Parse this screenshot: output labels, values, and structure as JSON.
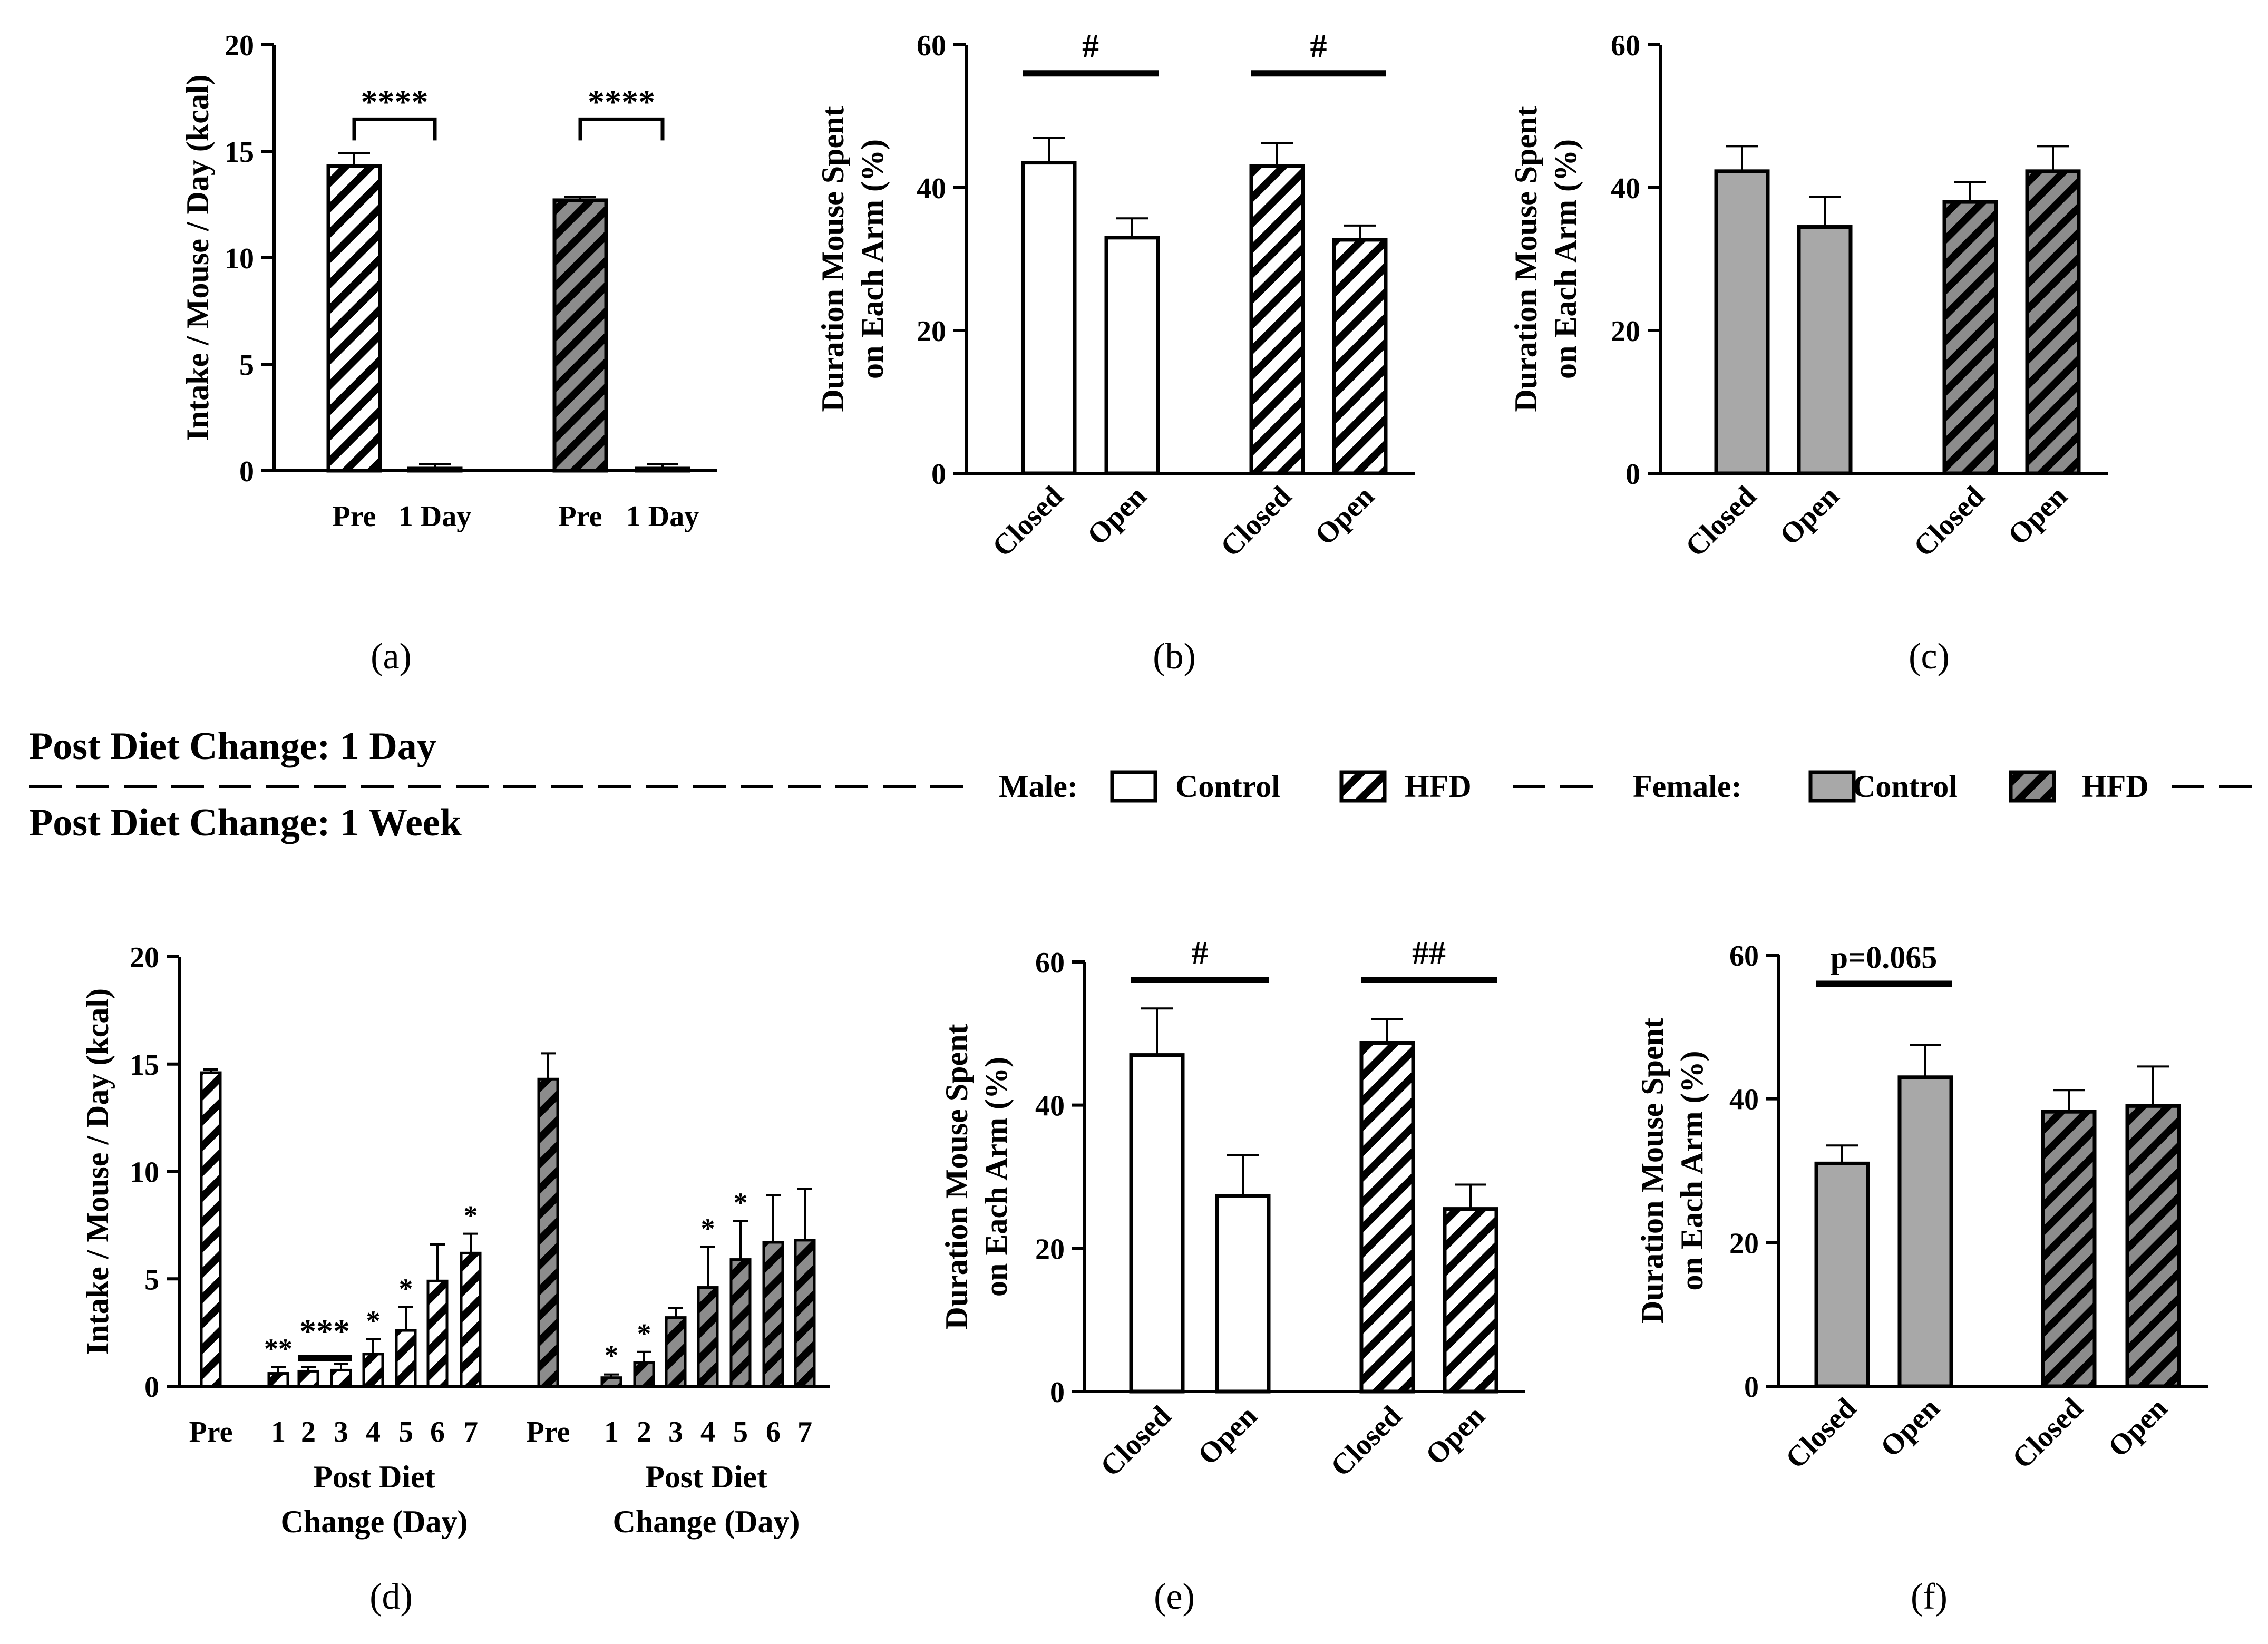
{
  "colors": {
    "male_control": "#ffffff",
    "male_hfd": "#ffffff",
    "female_control": "#a8a8a8",
    "female_hfd": "#8c8c8c",
    "stroke": "#000000"
  },
  "banner": {
    "top": "Post Diet Change: 1 Day",
    "bottom": "Post Diet Change: 1 Week"
  },
  "legend": {
    "male_label": "Male:",
    "female_label": "Female:",
    "items": [
      {
        "group": "male",
        "label": "Control",
        "fill": "male_control",
        "hatch": false
      },
      {
        "group": "male",
        "label": "HFD",
        "fill": "male_hfd",
        "hatch": true
      },
      {
        "group": "female",
        "label": "Control",
        "fill": "female_control",
        "hatch": false
      },
      {
        "group": "female",
        "label": "HFD",
        "fill": "female_hfd",
        "hatch": true
      }
    ]
  },
  "chart_data": [
    {
      "id": "a",
      "panel_label": "(a)",
      "type": "bar",
      "ylabel": "Intake / Mouse / Day (kcal)",
      "ylim": [
        0,
        20
      ],
      "yticks": [
        "0",
        "5",
        "10",
        "15",
        "20"
      ],
      "xlabel": "",
      "rotate_ticks": false,
      "bars": [
        {
          "tick": "Pre",
          "value": 14.3,
          "err": 0.6,
          "fill": "male_hfd",
          "hatch": true
        },
        {
          "tick": "1 Day",
          "value": 0.1,
          "err": 0.2,
          "fill": "male_hfd",
          "hatch": true
        },
        {
          "tick": "Pre",
          "value": 12.7,
          "err": 0.15,
          "fill": "female_hfd",
          "hatch": true
        },
        {
          "tick": "1 Day",
          "value": 0.1,
          "err": 0.2,
          "fill": "female_hfd",
          "hatch": true
        }
      ],
      "annotations": [
        {
          "text": "****",
          "from": 0,
          "to": 1,
          "y": 16.5,
          "style": "bracket"
        },
        {
          "text": "****",
          "from": 2,
          "to": 3,
          "y": 16.5,
          "style": "bracket"
        }
      ]
    },
    {
      "id": "b",
      "panel_label": "(b)",
      "type": "bar",
      "ylabel": [
        "Duration Mouse Spent",
        "on Each Arm (%)"
      ],
      "ylim": [
        0,
        60
      ],
      "yticks": [
        "0",
        "20",
        "40",
        "60"
      ],
      "rotate_ticks": true,
      "bars": [
        {
          "tick": "Closed",
          "value": 43.5,
          "err": 3.5,
          "fill": "male_control",
          "hatch": false
        },
        {
          "tick": "Open",
          "value": 33.0,
          "err": 2.7,
          "fill": "male_control",
          "hatch": false
        },
        {
          "tick": "Closed",
          "value": 43.0,
          "err": 3.2,
          "fill": "male_hfd",
          "hatch": true
        },
        {
          "tick": "Open",
          "value": 32.7,
          "err": 2.0,
          "fill": "male_hfd",
          "hatch": true
        }
      ],
      "annotations": [
        {
          "text": "#",
          "from": 0,
          "to": 1,
          "y": 56,
          "style": "line"
        },
        {
          "text": "#",
          "from": 2,
          "to": 3,
          "y": 56,
          "style": "line"
        }
      ]
    },
    {
      "id": "c",
      "panel_label": "(c)",
      "type": "bar",
      "ylabel": [
        "Duration Mouse Spent",
        "on Each Arm (%)"
      ],
      "ylim": [
        0,
        60
      ],
      "yticks": [
        "0",
        "20",
        "40",
        "60"
      ],
      "rotate_ticks": true,
      "bars": [
        {
          "tick": "Closed",
          "value": 42.3,
          "err": 3.5,
          "fill": "female_control",
          "hatch": false
        },
        {
          "tick": "Open",
          "value": 34.5,
          "err": 4.2,
          "fill": "female_control",
          "hatch": false
        },
        {
          "tick": "Closed",
          "value": 38.0,
          "err": 2.8,
          "fill": "female_hfd",
          "hatch": true
        },
        {
          "tick": "Open",
          "value": 42.3,
          "err": 3.5,
          "fill": "female_hfd",
          "hatch": true
        }
      ],
      "annotations": []
    },
    {
      "id": "d",
      "panel_label": "(d)",
      "type": "bar",
      "ylabel": "Intake / Mouse / Day (kcal)",
      "ylim": [
        0,
        20
      ],
      "yticks": [
        "0",
        "5",
        "10",
        "15",
        "20"
      ],
      "xlabel": [
        "Post Diet",
        "Change (Day)"
      ],
      "rotate_ticks": false,
      "bars": [
        {
          "tick": "Pre",
          "value": 14.6,
          "err": 0.15,
          "fill": "male_hfd",
          "hatch": true
        },
        {
          "tick": "1",
          "value": 0.6,
          "err": 0.3,
          "fill": "male_hfd",
          "hatch": true
        },
        {
          "tick": "2",
          "value": 0.7,
          "err": 0.2,
          "fill": "male_hfd",
          "hatch": true
        },
        {
          "tick": "3",
          "value": 0.75,
          "err": 0.3,
          "fill": "male_hfd",
          "hatch": true
        },
        {
          "tick": "4",
          "value": 1.5,
          "err": 0.7,
          "fill": "male_hfd",
          "hatch": true
        },
        {
          "tick": "5",
          "value": 2.6,
          "err": 1.1,
          "fill": "male_hfd",
          "hatch": true
        },
        {
          "tick": "6",
          "value": 4.9,
          "err": 1.7,
          "fill": "male_hfd",
          "hatch": true
        },
        {
          "tick": "7",
          "value": 6.2,
          "err": 0.9,
          "fill": "male_hfd",
          "hatch": true
        },
        {
          "tick": "Pre",
          "value": 14.3,
          "err": 1.2,
          "fill": "female_hfd",
          "hatch": true
        },
        {
          "tick": "1",
          "value": 0.4,
          "err": 0.15,
          "fill": "female_hfd",
          "hatch": true
        },
        {
          "tick": "2",
          "value": 1.1,
          "err": 0.5,
          "fill": "female_hfd",
          "hatch": true
        },
        {
          "tick": "3",
          "value": 3.2,
          "err": 0.45,
          "fill": "female_hfd",
          "hatch": true
        },
        {
          "tick": "4",
          "value": 4.6,
          "err": 1.9,
          "fill": "female_hfd",
          "hatch": true
        },
        {
          "tick": "5",
          "value": 5.9,
          "err": 1.8,
          "fill": "female_hfd",
          "hatch": true
        },
        {
          "tick": "6",
          "value": 6.7,
          "err": 2.2,
          "fill": "female_hfd",
          "hatch": true
        },
        {
          "tick": "7",
          "value": 6.8,
          "err": 2.4,
          "fill": "female_hfd",
          "hatch": true
        }
      ],
      "annotations": [
        {
          "text": "**",
          "from": 1,
          "to": 1,
          "y": 1.3,
          "style": "star"
        },
        {
          "text": "***",
          "from": 2,
          "to": 3,
          "y": 1.3,
          "style": "line"
        },
        {
          "text": "*",
          "from": 4,
          "to": 4,
          "y": 2.6,
          "style": "star"
        },
        {
          "text": "*",
          "from": 5,
          "to": 5,
          "y": 4.1,
          "style": "star"
        },
        {
          "text": "*",
          "from": 7,
          "to": 7,
          "y": 7.5,
          "style": "star"
        },
        {
          "text": "*",
          "from": 9,
          "to": 9,
          "y": 1.0,
          "style": "star"
        },
        {
          "text": "*",
          "from": 10,
          "to": 10,
          "y": 2.0,
          "style": "star"
        },
        {
          "text": "*",
          "from": 12,
          "to": 12,
          "y": 6.9,
          "style": "star"
        },
        {
          "text": "*",
          "from": 13,
          "to": 13,
          "y": 8.1,
          "style": "star"
        }
      ]
    },
    {
      "id": "e",
      "panel_label": "(e)",
      "type": "bar",
      "ylabel": [
        "Duration Mouse Spent",
        "on Each Arm (%)"
      ],
      "ylim": [
        0,
        60
      ],
      "yticks": [
        "0",
        "20",
        "40",
        "60"
      ],
      "rotate_ticks": true,
      "bars": [
        {
          "tick": "Closed",
          "value": 47.0,
          "err": 6.5,
          "fill": "male_control",
          "hatch": false
        },
        {
          "tick": "Open",
          "value": 27.3,
          "err": 5.7,
          "fill": "male_control",
          "hatch": false
        },
        {
          "tick": "Closed",
          "value": 48.7,
          "err": 3.3,
          "fill": "male_hfd",
          "hatch": true
        },
        {
          "tick": "Open",
          "value": 25.5,
          "err": 3.4,
          "fill": "male_hfd",
          "hatch": true
        }
      ],
      "annotations": [
        {
          "text": "#",
          "from": 0,
          "to": 1,
          "y": 57.5,
          "style": "line"
        },
        {
          "text": "##",
          "from": 2,
          "to": 3,
          "y": 57.5,
          "style": "line"
        }
      ]
    },
    {
      "id": "f",
      "panel_label": "(f)",
      "type": "bar",
      "ylabel": [
        "Duration Mouse Spent",
        "on Each Arm (%)"
      ],
      "ylim": [
        0,
        60
      ],
      "yticks": [
        "0",
        "20",
        "40",
        "60"
      ],
      "rotate_ticks": true,
      "bars": [
        {
          "tick": "Closed",
          "value": 31.0,
          "err": 2.5,
          "fill": "female_control",
          "hatch": false
        },
        {
          "tick": "Open",
          "value": 43.0,
          "err": 4.5,
          "fill": "female_control",
          "hatch": false
        },
        {
          "tick": "Closed",
          "value": 38.2,
          "err": 3.0,
          "fill": "female_hfd",
          "hatch": true
        },
        {
          "tick": "Open",
          "value": 39.0,
          "err": 5.5,
          "fill": "female_hfd",
          "hatch": true
        }
      ],
      "annotations": [
        {
          "text": "p=0.065",
          "from": 0,
          "to": 1,
          "y": 56,
          "style": "line",
          "plain": true
        }
      ]
    }
  ]
}
